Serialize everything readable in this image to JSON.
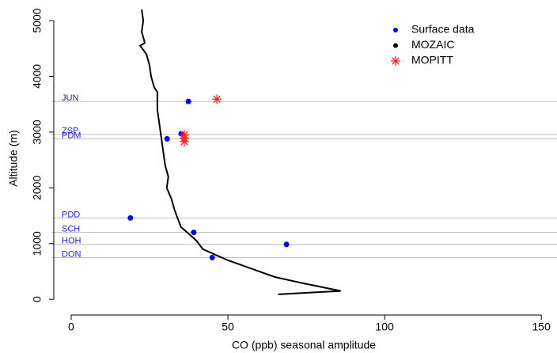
{
  "chart_data": {
    "type": "scatter",
    "x_label": "CO (ppb) seasonal amplitude",
    "y_label": "Altitude (m)",
    "xlim": [
      -6.3,
      155
    ],
    "ylim": [
      -310,
      5370
    ],
    "xticks": [
      0,
      50,
      100,
      150
    ],
    "yticks": [
      0,
      1000,
      2000,
      3000,
      4000,
      5000
    ],
    "legend": "topright",
    "annotations": [
      {
        "text": "JUN",
        "y": 3550,
        "color": "#1a1a6e"
      },
      {
        "text": "ZSP",
        "y": 2960,
        "color": "#2222cc"
      },
      {
        "text": "PDM",
        "y": 2880,
        "color": "#2222cc"
      },
      {
        "text": "PDD",
        "y": 1460,
        "color": "#2222cc"
      },
      {
        "text": "SCH",
        "y": 1200,
        "color": "#2222cc"
      },
      {
        "text": "HOH",
        "y": 985,
        "color": "#2222cc"
      },
      {
        "text": "DON",
        "y": 750,
        "color": "#2222cc"
      }
    ],
    "series": [
      {
        "name": "Surface data",
        "color": "#0000ff",
        "marker": "dot",
        "x": [
          37.4,
          35.1,
          30.6,
          18.9,
          39.1,
          68.7,
          45
        ],
        "y": [
          3550,
          2970,
          2880,
          1460,
          1200,
          985,
          750
        ]
      },
      {
        "name": "MOZAIC",
        "color": "#000000",
        "marker": "line",
        "x": [
          22.5,
          23,
          22.5,
          23.5,
          22,
          24,
          25,
          25.5,
          26.5,
          27.5,
          27.5,
          28,
          28.5,
          29,
          29.5,
          30,
          31,
          30.5,
          32,
          33,
          34,
          35,
          37,
          40,
          42,
          50,
          60,
          65,
          73,
          86,
          66
        ],
        "y": [
          5200,
          5000,
          4800,
          4600,
          4550,
          4400,
          4200,
          4000,
          3800,
          3720,
          3400,
          3200,
          3000,
          2800,
          2600,
          2400,
          2200,
          2000,
          1800,
          1600,
          1450,
          1300,
          1200,
          1050,
          900,
          700,
          500,
          400,
          300,
          150,
          90
        ]
      },
      {
        "name": "MOPITT",
        "color": "#ff2020",
        "marker": "star",
        "x": [
          46.5,
          36.1,
          36.1,
          36.1
        ],
        "y": [
          3590,
          2950,
          2890,
          2830
        ]
      }
    ]
  }
}
